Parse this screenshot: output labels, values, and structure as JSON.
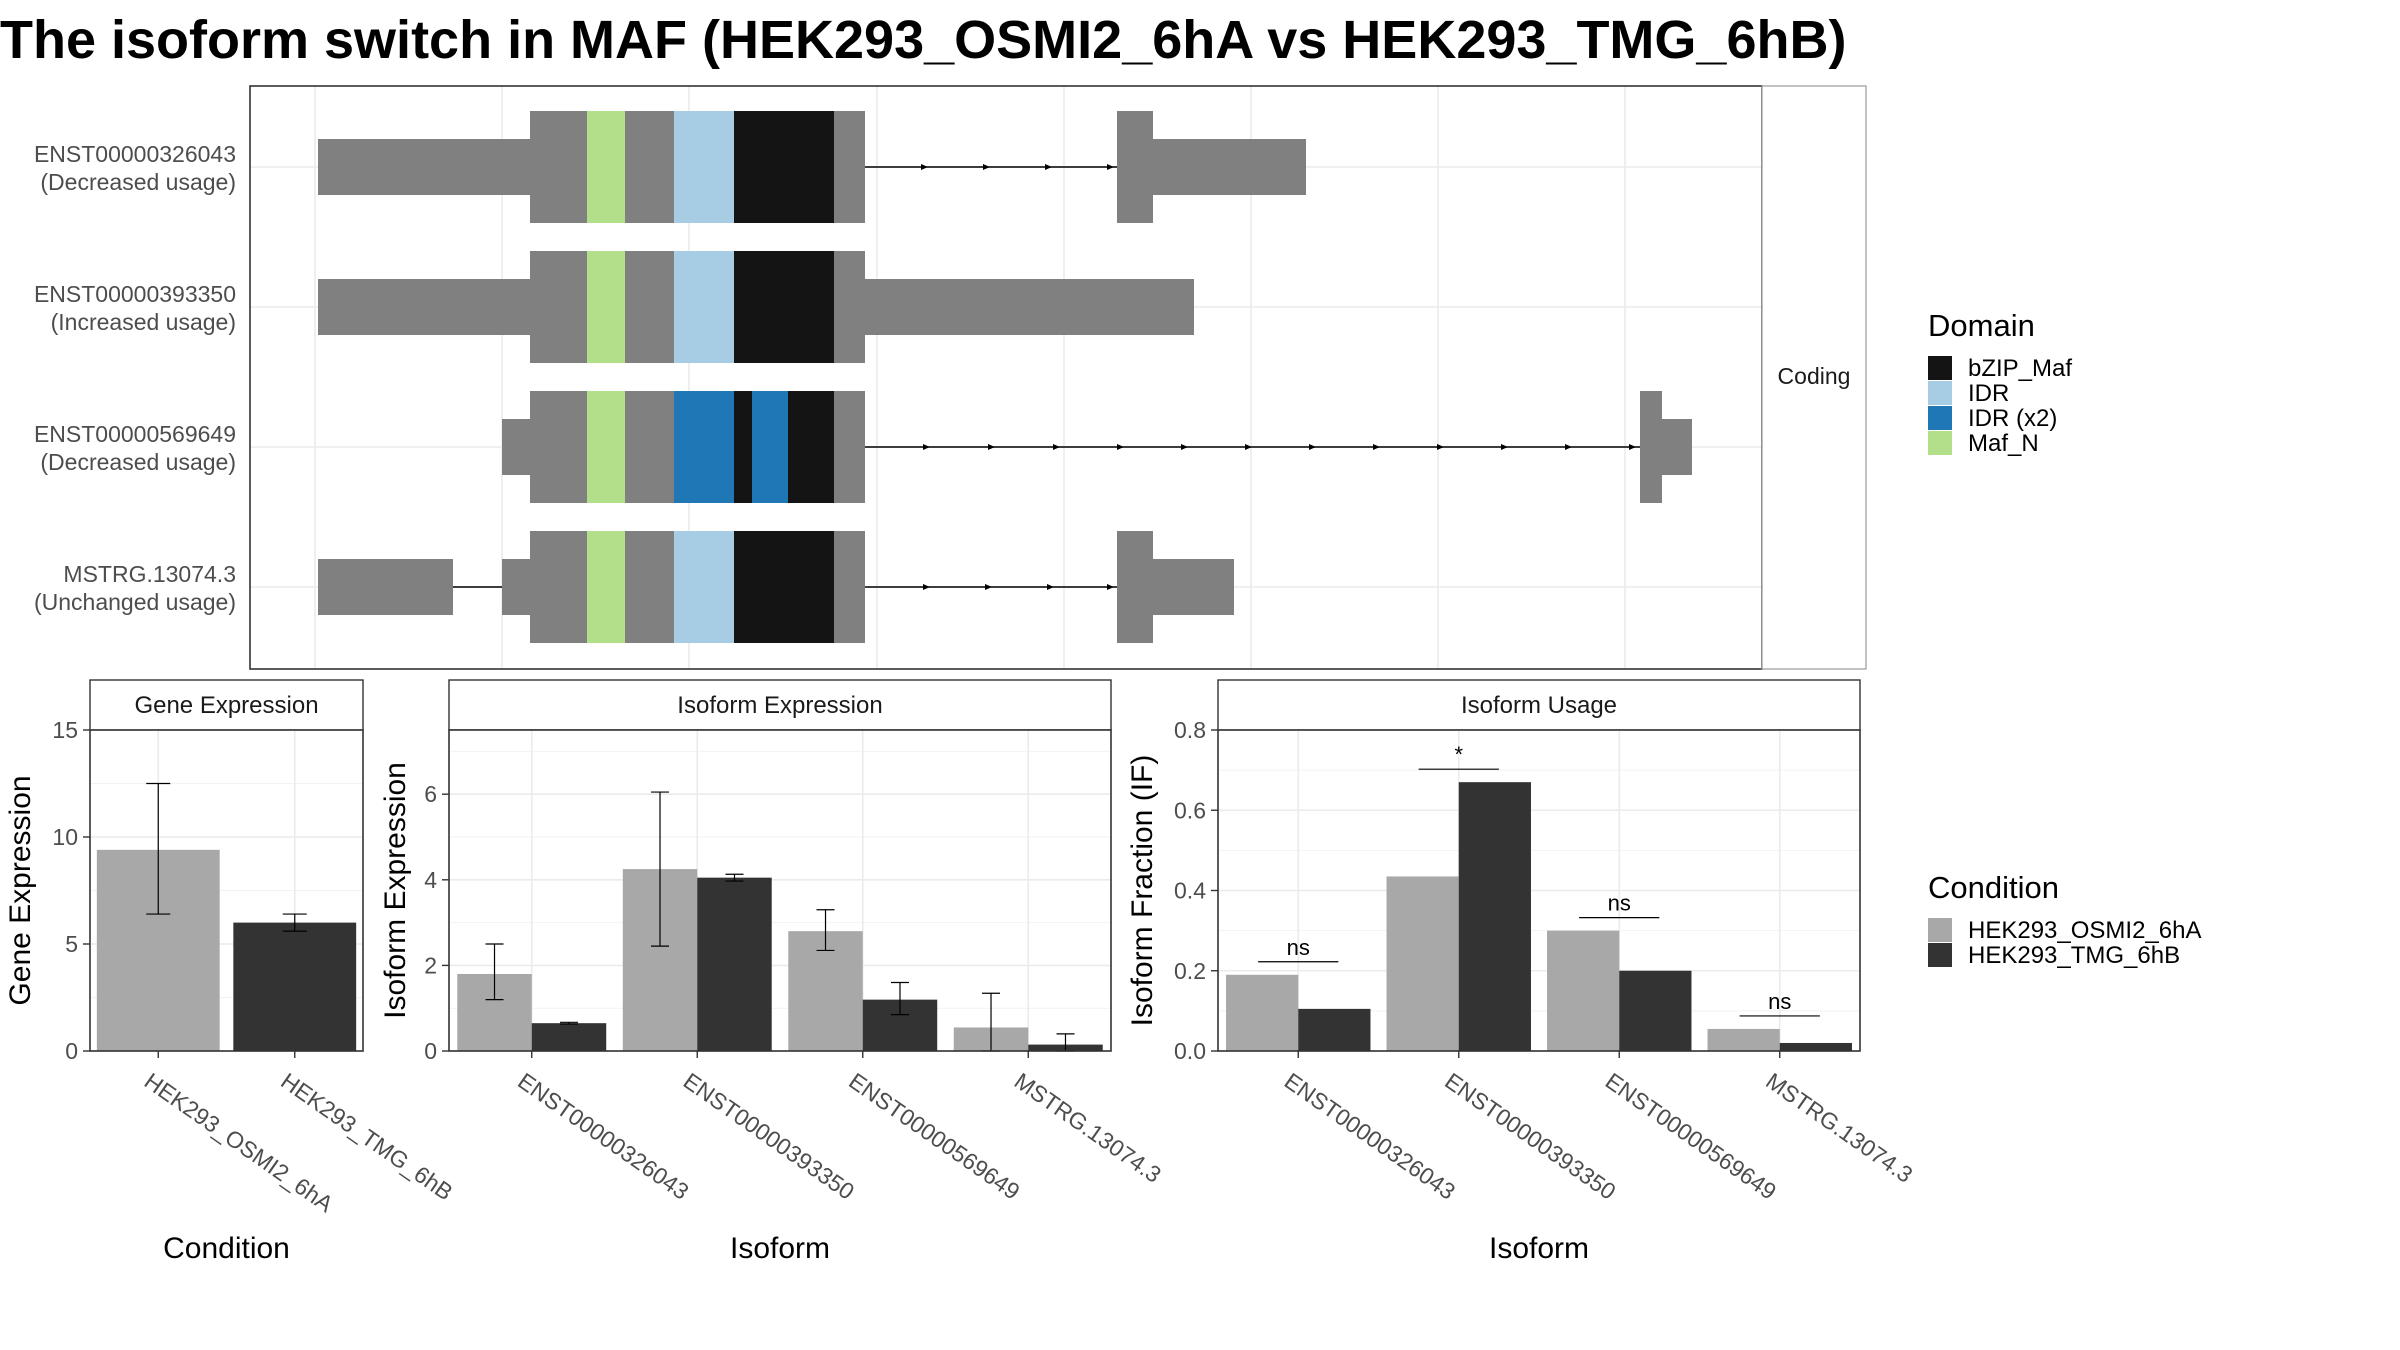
{
  "title": "The isoform switch in MAF (HEK293_OSMI2_6hA vs HEK293_TMG_6hB)",
  "colors": {
    "exon": "#808080",
    "bZIP_Maf": "#141414",
    "IDR": "#a6cde3",
    "IDR_x2": "#1f77b5",
    "Maf_N": "#b3df8a",
    "cond_a": "#a8a8a8",
    "cond_b": "#333333",
    "grid": "#ebebeb",
    "panel_border": "#333333",
    "strip_border": "#999999"
  },
  "structure": {
    "strip_label": "Coding",
    "transcripts": [
      {
        "id": "ENST00000326043",
        "usage": "(Decreased usage)"
      },
      {
        "id": "ENST00000393350",
        "usage": "(Increased usage)"
      },
      {
        "id": "ENST00000569649",
        "usage": "(Decreased usage)"
      },
      {
        "id": "MSTRG.13074.3",
        "usage": "(Unchanged usage)"
      }
    ]
  },
  "legend_domain": {
    "title": "Domain",
    "items": [
      {
        "label": "bZIP_Maf",
        "color": "#141414"
      },
      {
        "label": "IDR",
        "color": "#a6cde3"
      },
      {
        "label": "IDR (x2)",
        "color": "#1f77b5"
      },
      {
        "label": "Maf_N",
        "color": "#b3df8a"
      }
    ]
  },
  "legend_condition": {
    "title": "Condition",
    "items": [
      {
        "label": "HEK293_OSMI2_6hA",
        "color": "#a8a8a8"
      },
      {
        "label": "HEK293_TMG_6hB",
        "color": "#333333"
      }
    ]
  },
  "chart_data": [
    {
      "type": "bar",
      "strip_title": "Gene Expression",
      "xlabel": "Condition",
      "ylabel": "Gene Expression",
      "ylim": [
        0,
        15
      ],
      "yticks": [
        0,
        5,
        10,
        15
      ],
      "categories": [
        "HEK293_OSMI2_6hA",
        "HEK293_TMG_6hB"
      ],
      "values": [
        9.4,
        6.0
      ],
      "errors": [
        [
          6.4,
          12.5
        ],
        [
          5.6,
          6.4
        ]
      ]
    },
    {
      "type": "bar",
      "strip_title": "Isoform Expression",
      "xlabel": "Isoform",
      "ylabel": "Isoform Expression",
      "ylim": [
        0,
        7.5
      ],
      "yticks": [
        0,
        2,
        4,
        6
      ],
      "categories": [
        "ENST00000326043",
        "ENST00000393350",
        "ENST00000569649",
        "MSTRG.13074.3"
      ],
      "series": [
        {
          "name": "HEK293_OSMI2_6hA",
          "values": [
            1.8,
            4.25,
            2.8,
            0.55
          ],
          "errors": [
            [
              1.2,
              2.5
            ],
            [
              2.45,
              6.05
            ],
            [
              2.35,
              3.3
            ],
            [
              0.0,
              1.35
            ]
          ]
        },
        {
          "name": "HEK293_TMG_6hB",
          "values": [
            0.65,
            4.05,
            1.2,
            0.15
          ],
          "errors": [
            [
              0.63,
              0.67
            ],
            [
              3.97,
              4.13
            ],
            [
              0.85,
              1.6
            ],
            [
              0.0,
              0.4
            ]
          ]
        }
      ]
    },
    {
      "type": "bar",
      "strip_title": "Isoform Usage",
      "xlabel": "Isoform",
      "ylabel": "Isoform Fraction (IF)",
      "ylim": [
        0,
        0.8
      ],
      "yticks": [
        0.0,
        0.2,
        0.4,
        0.6,
        0.8
      ],
      "ytick_labels": [
        "0.0",
        "0.2",
        "0.4",
        "0.6",
        "0.8"
      ],
      "categories": [
        "ENST00000326043",
        "ENST00000393350",
        "ENST00000569649",
        "MSTRG.13074.3"
      ],
      "series": [
        {
          "name": "HEK293_OSMI2_6hA",
          "values": [
            0.19,
            0.435,
            0.3,
            0.055
          ]
        },
        {
          "name": "HEK293_TMG_6hB",
          "values": [
            0.105,
            0.67,
            0.2,
            0.02
          ]
        }
      ],
      "significance": [
        "ns",
        "*",
        "ns",
        "ns"
      ]
    }
  ]
}
